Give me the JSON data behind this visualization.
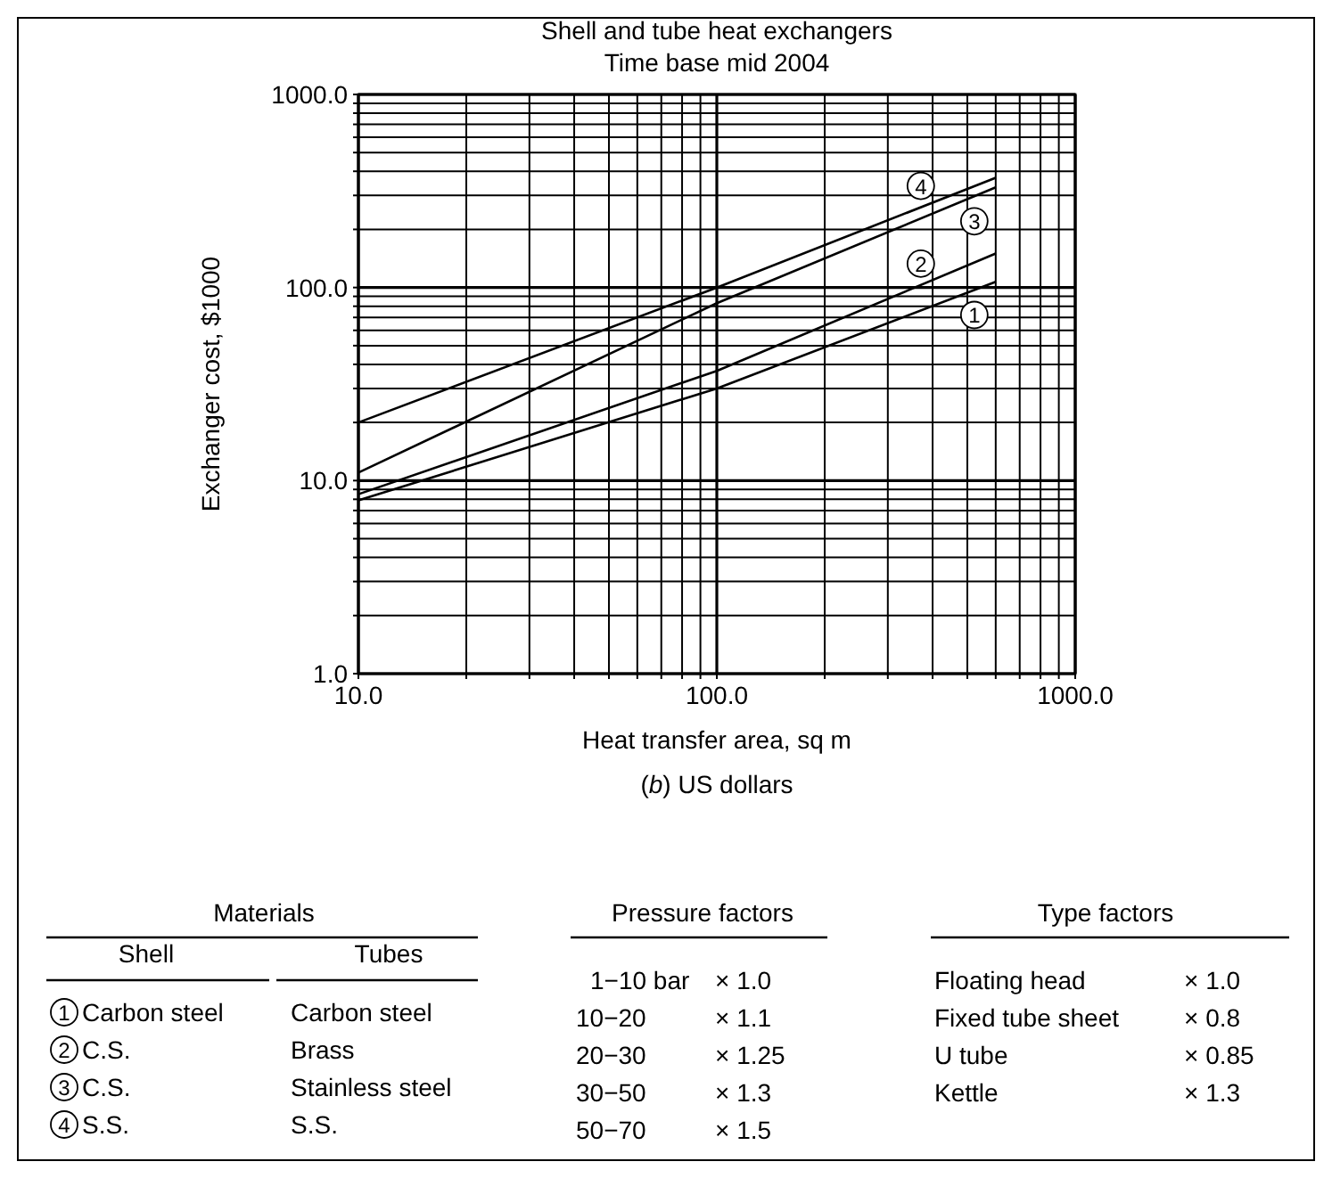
{
  "chart_data": {
    "type": "line",
    "title": "Shell and tube heat exchangers",
    "subtitle": "Time base mid 2004",
    "xlabel": "Heat transfer area, sq m",
    "ylabel": "Exchanger cost, $1000",
    "log": "xy",
    "grid": true,
    "legend": "bottom left",
    "marker": "none",
    "line_style": "solid",
    "xlim": [
      10,
      1000
    ],
    "ylim": [
      1,
      1000
    ],
    "xticks": [
      {
        "value": 10,
        "label": "10.0"
      },
      {
        "value": 20,
        "label": null
      },
      {
        "value": 30,
        "label": null
      },
      {
        "value": 40,
        "label": null
      },
      {
        "value": 50,
        "label": null
      },
      {
        "value": 60,
        "label": null
      },
      {
        "value": 70,
        "label": null
      },
      {
        "value": 80,
        "label": null
      },
      {
        "value": 90,
        "label": null
      },
      {
        "value": 100,
        "label": "100.0"
      },
      {
        "value": 200,
        "label": null
      },
      {
        "value": 300,
        "label": null
      },
      {
        "value": 400,
        "label": null
      },
      {
        "value": 500,
        "label": null
      },
      {
        "value": 600,
        "label": null
      },
      {
        "value": 700,
        "label": null
      },
      {
        "value": 800,
        "label": null
      },
      {
        "value": 900,
        "label": null
      },
      {
        "value": 1000,
        "label": "1000.0"
      }
    ],
    "yticks": [
      {
        "value": 1,
        "label": "1.0"
      },
      {
        "value": 2,
        "label": null
      },
      {
        "value": 3,
        "label": null
      },
      {
        "value": 4,
        "label": null
      },
      {
        "value": 5,
        "label": null
      },
      {
        "value": 6,
        "label": null
      },
      {
        "value": 7,
        "label": null
      },
      {
        "value": 8,
        "label": null
      },
      {
        "value": 9,
        "label": null
      },
      {
        "value": 10,
        "label": "10.0"
      },
      {
        "value": 20,
        "label": null
      },
      {
        "value": 30,
        "label": null
      },
      {
        "value": 40,
        "label": null
      },
      {
        "value": 50,
        "label": null
      },
      {
        "value": 60,
        "label": null
      },
      {
        "value": 70,
        "label": null
      },
      {
        "value": 80,
        "label": null
      },
      {
        "value": 90,
        "label": null
      },
      {
        "value": 100,
        "label": "100.0"
      },
      {
        "value": 200,
        "label": null
      },
      {
        "value": 300,
        "label": null
      },
      {
        "value": 400,
        "label": null
      },
      {
        "value": 500,
        "label": null
      },
      {
        "value": 600,
        "label": null
      },
      {
        "value": 700,
        "label": null
      },
      {
        "value": 800,
        "label": null
      },
      {
        "value": 900,
        "label": null
      },
      {
        "value": 1000,
        "label": "1000.0"
      }
    ],
    "x": [
      10,
      100,
      600
    ],
    "series": [
      {
        "name": "1",
        "color": "#000000",
        "values": [
          7.9,
          30,
          107
        ]
      },
      {
        "name": "2",
        "color": "#000000",
        "values": [
          8.5,
          37,
          150
        ]
      },
      {
        "name": "3",
        "color": "#000000",
        "values": [
          11,
          83,
          330
        ]
      },
      {
        "name": "4",
        "color": "#000000",
        "values": [
          20,
          100,
          370
        ]
      }
    ],
    "annotations": [
      "(b) US dollars",
      "Materials",
      "Shell",
      "Tubes",
      "Carbon steel",
      "Carbon steel",
      "C.S.",
      "Brass",
      "C.S.",
      "Stainless steel",
      "S.S.",
      "S.S.",
      "Pressure factors",
      "1−10 bar",
      "× 1.0",
      "10−20",
      "× 1.1",
      "20−30",
      "× 1.25",
      "30−50",
      "× 1.3",
      "50−70",
      "× 1.5",
      "Type factors",
      "Floating head",
      "× 1.0",
      "Fixed tube sheet",
      "× 0.8",
      "U tube",
      "× 0.85",
      "Kettle",
      "× 1.3"
    ]
  }
}
